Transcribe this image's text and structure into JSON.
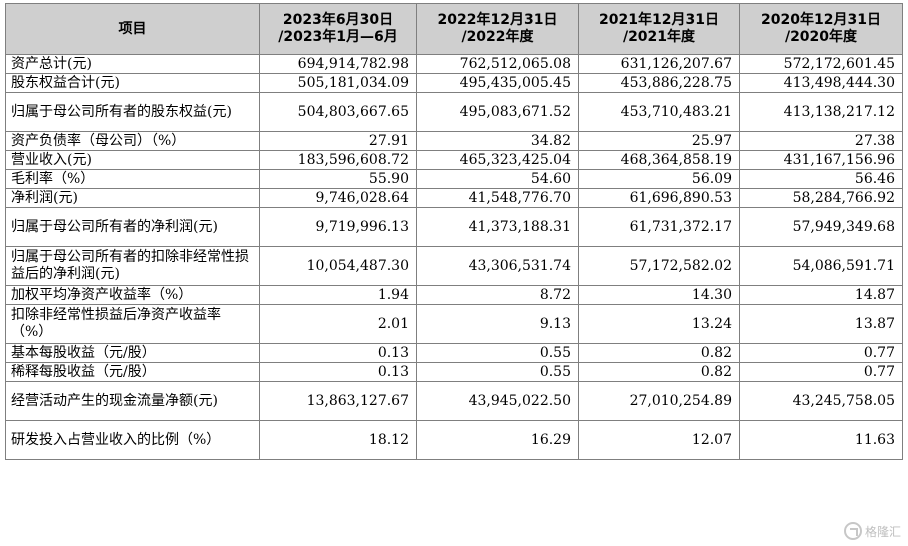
{
  "header": {
    "item_label": "项目",
    "columns": [
      {
        "line1": "2023年6月30日",
        "line2": "/2023年1月—6月"
      },
      {
        "line1": "2022年12月31日",
        "line2": "/2022年度"
      },
      {
        "line1": "2021年12月31日",
        "line2": "/2021年度"
      },
      {
        "line1": "2020年12月31日",
        "line2": "/2020年度"
      }
    ]
  },
  "rows": [
    {
      "label": "资产总计(元)",
      "values": [
        "694,914,782.98",
        "762,512,065.08",
        "631,126,207.67",
        "572,172,601.45"
      ]
    },
    {
      "label": "股东权益合计(元)",
      "values": [
        "505,181,034.09",
        "495,435,005.45",
        "453,886,228.75",
        "413,498,444.30"
      ]
    },
    {
      "label": "归属于母公司所有者的股东权益(元)",
      "values": [
        "504,803,667.65",
        "495,083,671.52",
        "453,710,483.21",
        "413,138,217.12"
      ]
    },
    {
      "label": "资产负债率（母公司）（%）",
      "values": [
        "27.91",
        "34.82",
        "25.97",
        "27.38"
      ]
    },
    {
      "label": "营业收入(元)",
      "values": [
        "183,596,608.72",
        "465,323,425.04",
        "468,364,858.19",
        "431,167,156.96"
      ]
    },
    {
      "label": "毛利率（%）",
      "values": [
        "55.90",
        "54.60",
        "56.09",
        "56.46"
      ]
    },
    {
      "label": "净利润(元)",
      "values": [
        "9,746,028.64",
        "41,548,776.70",
        "61,696,890.53",
        "58,284,766.92"
      ]
    },
    {
      "label": "归属于母公司所有者的净利润(元)",
      "values": [
        "9,719,996.13",
        "41,373,188.31",
        "61,731,372.17",
        "57,949,349.68"
      ]
    },
    {
      "label": "归属于母公司所有者的扣除非经常性损益后的净利润(元)",
      "values": [
        "10,054,487.30",
        "43,306,531.74",
        "57,172,582.02",
        "54,086,591.71"
      ]
    },
    {
      "label": "加权平均净资产收益率（%）",
      "values": [
        "1.94",
        "8.72",
        "14.30",
        "14.87"
      ]
    },
    {
      "label": "扣除非经常性损益后净资产收益率（%）",
      "values": [
        "2.01",
        "9.13",
        "13.24",
        "13.87"
      ]
    },
    {
      "label": "基本每股收益（元/股）",
      "values": [
        "0.13",
        "0.55",
        "0.82",
        "0.77"
      ]
    },
    {
      "label": "稀释每股收益（元/股）",
      "values": [
        "0.13",
        "0.55",
        "0.82",
        "0.77"
      ]
    },
    {
      "label": "经营活动产生的现金流量净额(元)",
      "values": [
        "13,863,127.67",
        "43,945,022.50",
        "27,010,254.89",
        "43,245,758.05"
      ]
    },
    {
      "label": "研发投入占营业收入的比例（%）",
      "values": [
        "18.12",
        "16.29",
        "12.07",
        "11.63"
      ]
    }
  ],
  "watermark": {
    "text": "格隆汇"
  }
}
